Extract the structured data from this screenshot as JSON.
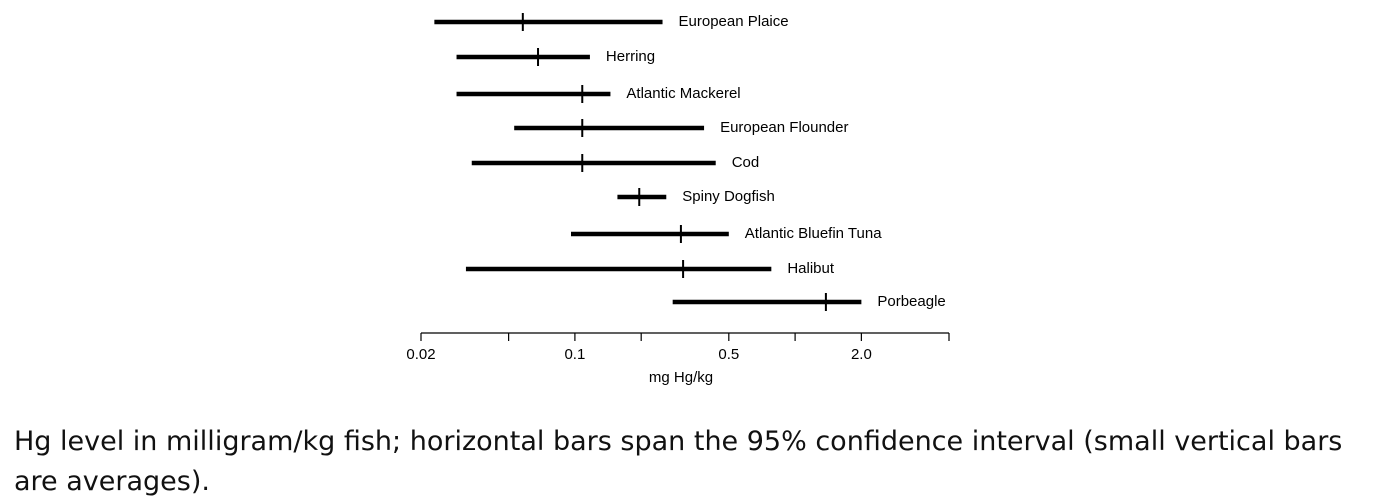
{
  "chart_data": {
    "type": "errorbar",
    "categories": [
      "European Plaice",
      "Herring",
      "Atlantic Mackerel",
      "European Flounder",
      "Cod",
      "Spiny Dogfish",
      "Atlantic Bluefin Tuna",
      "Halibut",
      "Porbeagle"
    ],
    "low": [
      0.023,
      0.029,
      0.029,
      0.053,
      0.034,
      0.156,
      0.096,
      0.032,
      0.278
    ],
    "mean": [
      0.058,
      0.068,
      0.108,
      0.108,
      0.108,
      0.196,
      0.303,
      0.31,
      1.38
    ],
    "high": [
      0.25,
      0.117,
      0.145,
      0.386,
      0.436,
      0.26,
      0.5,
      0.78,
      2.0
    ],
    "color": "#000000",
    "xlabel": "mg Hg/kg",
    "xscale": "log",
    "xlim": [
      0.02,
      5
    ],
    "xticks": [
      0.02,
      0.1,
      0.5,
      {
        "value": 2,
        "label": "2.0"
      }
    ],
    "xminor_ticks": [
      0.05,
      0.2,
      1,
      5
    ],
    "caption": "Hg level in milligram/kg fish; horizontal bars span the 95% confidence interval (small vertical bars are averages)."
  }
}
